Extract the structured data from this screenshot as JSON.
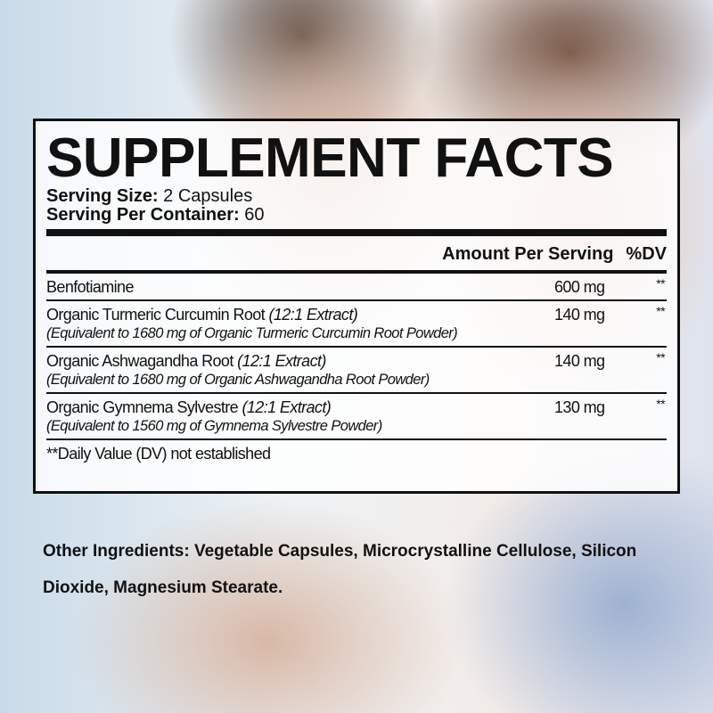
{
  "title": "SUPPLEMENT FACTS",
  "serving_size": {
    "label": "Serving Size:",
    "value": "2 Capsules"
  },
  "servings_per_container": {
    "label": "Serving Per Container:",
    "value": "60"
  },
  "header": {
    "amount": "Amount Per Serving",
    "dv": "%DV"
  },
  "ingredients": [
    {
      "name": "Benfotiamine",
      "extract": "",
      "equivalent": "",
      "amount": "600 mg",
      "dv": "**"
    },
    {
      "name": "Organic Turmeric Curcumin Root",
      "extract": "(12:1 Extract)",
      "equivalent": "(Equivalent to 1680 mg of Organic Turmeric Curcumin Root Powder)",
      "amount": "140 mg",
      "dv": "**"
    },
    {
      "name": "Organic Ashwagandha Root",
      "extract": "(12:1 Extract)",
      "equivalent": "(Equivalent to 1680 mg of Organic Ashwagandha Root Powder)",
      "amount": "140 mg",
      "dv": "**"
    },
    {
      "name": "Organic Gymnema Sylvestre",
      "extract": "(12:1 Extract)",
      "equivalent": "(Equivalent to 1560 mg of Gymnema Sylvestre Powder)",
      "amount": "130 mg",
      "dv": "**"
    }
  ],
  "footnote": "**Daily Value (DV) not established",
  "other_ingredients": {
    "label": "Other Ingredients:",
    "value": "Vegetable Capsules, Microcrystalline Cellulose, Silicon Dioxide, Magnesium Stearate."
  }
}
